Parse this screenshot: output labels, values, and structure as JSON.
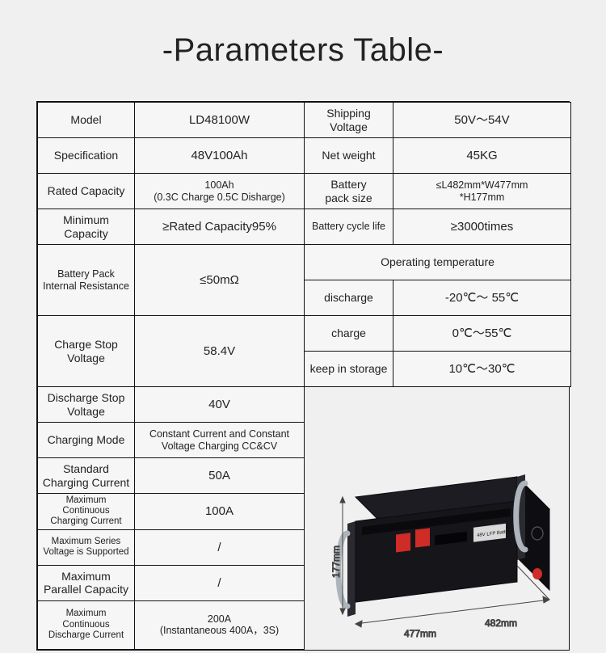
{
  "title": "-Parameters Table-",
  "left": [
    {
      "label": "Model",
      "value": "LD48100W"
    },
    {
      "label": "Specification",
      "value": "48V100Ah"
    },
    {
      "label": "Rated Capacity",
      "value": "100Ah\n(0.3C Charge 0.5C Disharge)"
    },
    {
      "label": "Minimum\nCapacity",
      "value": "≥Rated Capacity95%"
    },
    {
      "label": "Battery Pack\nInternal Resistance",
      "value": "≤50mΩ"
    },
    {
      "label": "Charge Stop\nVoltage",
      "value": "58.4V"
    },
    {
      "label": "Discharge Stop\nVoltage",
      "value": "40V"
    },
    {
      "label": "Charging Mode",
      "value": "Constant Current and Constant\nVoltage Charging CC&CV"
    },
    {
      "label": "Standard\nCharging Current",
      "value": "50A"
    },
    {
      "label": "Maximum Continuous\nCharging Current",
      "value": "100A"
    },
    {
      "label": "Maximum Series\nVoltage is Supported",
      "value": "/"
    },
    {
      "label": "Maximum\nParallel Capacity",
      "value": "/"
    },
    {
      "label": "Maximum Continuous\nDischarge Current",
      "value": "200A\n(Instantaneous 400A，3S)"
    }
  ],
  "right_top": [
    {
      "label": "Shipping\nVoltage",
      "value": "50V～54V"
    },
    {
      "label": "Net weight",
      "value": "45KG"
    },
    {
      "label": "Battery\npack size",
      "value": "≤L482mm*W477mm\n*H177mm"
    },
    {
      "label": "Battery cycle life",
      "value": "≥3000times"
    }
  ],
  "right_op_header": "Operating temperature",
  "right_op": [
    {
      "label": "discharge",
      "value": "-20℃～ 55℃"
    },
    {
      "label": "charge",
      "value": "0℃～55℃"
    },
    {
      "label": "keep in storage",
      "value": "10℃～30℃"
    }
  ],
  "dims": {
    "h": "177mm",
    "w": "477mm",
    "l": "482mm"
  },
  "colors": {
    "page_bg": "#f0f0f0",
    "cell_bg": "#f6f6f6",
    "border": "#101418",
    "text": "#222222",
    "device_body": "#15151a",
    "device_edge": "#2a2a30",
    "connector": "#cf2b27",
    "handle": "#aeb4bb"
  }
}
